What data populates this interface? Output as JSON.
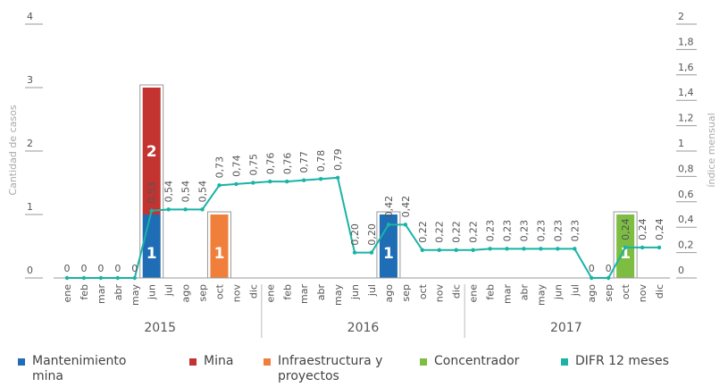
{
  "chart_data": {
    "type": "bar-line",
    "ylabel": "Cantidad de casos",
    "y2label": "índice mensual",
    "categories": [
      "ene",
      "feb",
      "mar",
      "abr",
      "may",
      "jun",
      "jul",
      "ago",
      "sep",
      "oct",
      "nov",
      "dic",
      "ene",
      "feb",
      "mar",
      "abr",
      "may",
      "jun",
      "jul",
      "ago",
      "sep",
      "oct",
      "nov",
      "dic",
      "ene",
      "feb",
      "mar",
      "abr",
      "may",
      "jun",
      "jul",
      "ago",
      "sep",
      "oct",
      "nov",
      "dic"
    ],
    "groups": [
      "2015",
      "2016",
      "2017"
    ],
    "ylim": [
      0,
      4
    ],
    "yticks": [
      0,
      1,
      2,
      3,
      4
    ],
    "y2lim": [
      0,
      2
    ],
    "y2ticks": [
      0,
      {
        "value": 0.2,
        "label": "0,2"
      },
      {
        "value": 0.4,
        "label": "0,4"
      },
      {
        "value": 0.6,
        "label": "0,6"
      },
      {
        "value": 0.8,
        "label": "0,8"
      },
      1,
      {
        "value": 1.2,
        "label": "1,2"
      },
      {
        "value": 1.4,
        "label": "1,4"
      },
      {
        "value": 1.6,
        "label": "1,6"
      },
      {
        "value": 1.8,
        "label": "1,8"
      },
      2
    ],
    "series": [
      {
        "name": "Mantenimiento mina",
        "color": "#1f6db5",
        "values": [
          null,
          null,
          null,
          null,
          null,
          1,
          null,
          null,
          null,
          null,
          null,
          null,
          null,
          null,
          null,
          null,
          null,
          null,
          null,
          1,
          null,
          null,
          null,
          null,
          null,
          null,
          null,
          null,
          null,
          null,
          null,
          null,
          null,
          null,
          null,
          null
        ]
      },
      {
        "name": "Mina",
        "color": "#c3332f",
        "values": [
          null,
          null,
          null,
          null,
          null,
          2,
          null,
          null,
          null,
          null,
          null,
          null,
          null,
          null,
          null,
          null,
          null,
          null,
          null,
          null,
          null,
          null,
          null,
          null,
          null,
          null,
          null,
          null,
          null,
          null,
          null,
          null,
          null,
          null,
          null,
          null
        ]
      },
      {
        "name": "Infraestructura y proyectos",
        "color": "#f07f3c",
        "values": [
          null,
          null,
          null,
          null,
          null,
          null,
          null,
          null,
          null,
          1,
          null,
          null,
          null,
          null,
          null,
          null,
          null,
          null,
          null,
          null,
          null,
          null,
          null,
          null,
          null,
          null,
          null,
          null,
          null,
          null,
          null,
          null,
          null,
          null,
          null,
          null
        ]
      },
      {
        "name": "Concentrador",
        "color": "#7cbd42",
        "values": [
          null,
          null,
          null,
          null,
          null,
          null,
          null,
          null,
          null,
          null,
          null,
          null,
          null,
          null,
          null,
          null,
          null,
          null,
          null,
          null,
          null,
          null,
          null,
          null,
          null,
          null,
          null,
          null,
          null,
          null,
          null,
          null,
          null,
          1,
          null,
          null
        ]
      },
      {
        "name": "DIFR 12 meses",
        "color": "#1ab3a6",
        "axis": "y2",
        "values": [
          0,
          0,
          0,
          0,
          0,
          0.53,
          0.54,
          0.54,
          0.54,
          0.73,
          0.74,
          0.75,
          0.76,
          0.76,
          0.77,
          0.78,
          0.79,
          0.2,
          0.2,
          0.42,
          0.42,
          0.22,
          0.22,
          0.22,
          0.22,
          0.23,
          0.23,
          0.23,
          0.23,
          0.23,
          0.23,
          0,
          0,
          0.24,
          0.24,
          0.24
        ],
        "value_labels": [
          "0",
          "0",
          "0",
          "0",
          "0",
          "0,53",
          "0,54",
          "0,54",
          "0,54",
          "0,73",
          "0,74",
          "0,75",
          "0,76",
          "0,76",
          "0,77",
          "0,78",
          "0,79",
          "0,20",
          "0,20",
          "0,42",
          "0,42",
          "0,22",
          "0,22",
          "0,22",
          "0,22",
          "0,23",
          "0,23",
          "0,23",
          "0,23",
          "0,23",
          "0,23",
          "0",
          "0",
          "0,24",
          "0,24",
          "0,24"
        ]
      }
    ]
  }
}
